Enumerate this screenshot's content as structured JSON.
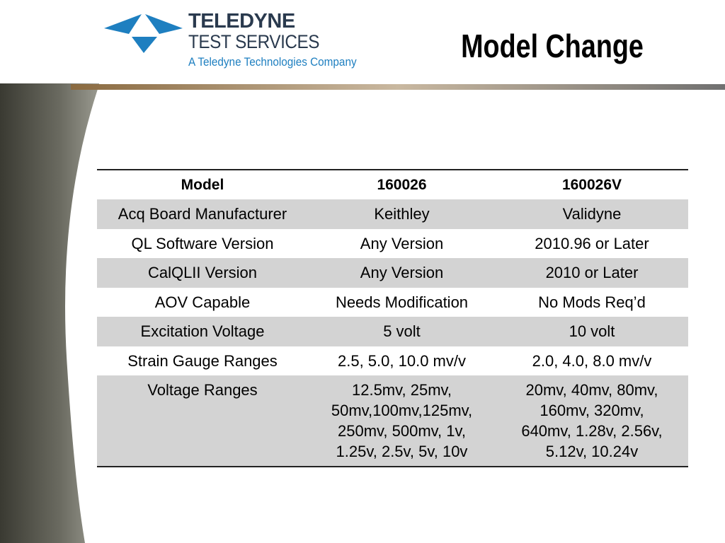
{
  "header": {
    "logo": {
      "name": "TELEDYNE",
      "division": "TEST SERVICES",
      "tagline": "A Teledyne Technologies Company"
    },
    "title": "Model Change"
  },
  "table": {
    "columns": [
      "Model",
      "160026",
      "160026V"
    ],
    "rows": [
      [
        [
          "Acq Board Manufacturer"
        ],
        [
          "Keithley"
        ],
        [
          "Validyne"
        ]
      ],
      [
        [
          "QL Software Version"
        ],
        [
          "Any Version"
        ],
        [
          "2010.96 or Later"
        ]
      ],
      [
        [
          "CalQLII Version"
        ],
        [
          "Any Version"
        ],
        [
          "2010 or Later"
        ]
      ],
      [
        [
          "AOV Capable"
        ],
        [
          "Needs Modification"
        ],
        [
          "No Mods Req’d"
        ]
      ],
      [
        [
          "Excitation Voltage"
        ],
        [
          "5 volt"
        ],
        [
          "10 volt"
        ]
      ],
      [
        [
          "Strain Gauge Ranges"
        ],
        [
          "2.5, 5.0, 10.0 mv/v"
        ],
        [
          "2.0, 4.0, 8.0 mv/v"
        ]
      ],
      [
        [
          "Voltage Ranges"
        ],
        [
          "12.5mv, 25mv,",
          "50mv,100mv,125mv,",
          "250mv, 500mv, 1v,",
          "1.25v, 2.5v, 5v, 10v"
        ],
        [
          "20mv, 40mv, 80mv,",
          "160mv, 320mv,",
          "640mv, 1.28v, 2.56v,",
          "5.12v, 10.24v"
        ]
      ]
    ]
  }
}
